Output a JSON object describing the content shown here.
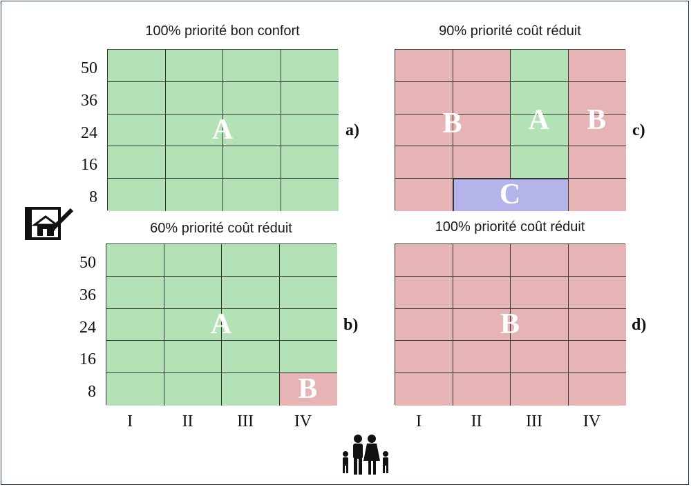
{
  "colors": {
    "A": "#b4e2b7",
    "B": "#e6b4b4",
    "C": "#b4b4ea"
  },
  "y_ticks": [
    "50",
    "36",
    "24",
    "16",
    "8"
  ],
  "x_ticks": [
    "I",
    "II",
    "III",
    "IV"
  ],
  "icons": {
    "left": "house-plan-icon",
    "bottom": "family-icon"
  },
  "panels": [
    {
      "id": "a",
      "title": "100% priorité bon confort",
      "letter": "a)",
      "cells": [
        [
          "A",
          "A",
          "A",
          "A"
        ],
        [
          "A",
          "A",
          "A",
          "A"
        ],
        [
          "A",
          "A",
          "A",
          "A"
        ],
        [
          "A",
          "A",
          "A",
          "A"
        ],
        [
          "A",
          "A",
          "A",
          "A"
        ]
      ],
      "labels": [
        {
          "text": "A",
          "col": 2.0,
          "row": 2.5
        }
      ]
    },
    {
      "id": "c",
      "title": "90% priorité coût réduit",
      "letter": "c)",
      "cells": [
        [
          "B",
          "B",
          "A",
          "B"
        ],
        [
          "B",
          "B",
          "A",
          "B"
        ],
        [
          "B",
          "B",
          "A",
          "B"
        ],
        [
          "B",
          "B",
          "A",
          "B"
        ],
        [
          "B",
          "C",
          "C",
          "B"
        ]
      ],
      "labels": [
        {
          "text": "B",
          "col": 1.0,
          "row": 2.3
        },
        {
          "text": "A",
          "col": 2.5,
          "row": 2.2
        },
        {
          "text": "B",
          "col": 3.5,
          "row": 2.2
        },
        {
          "text": "C",
          "col": 2.0,
          "row": 4.5
        }
      ]
    },
    {
      "id": "b",
      "title": "60% priorité coût réduit",
      "letter": "b)",
      "cells": [
        [
          "A",
          "A",
          "A",
          "A"
        ],
        [
          "A",
          "A",
          "A",
          "A"
        ],
        [
          "A",
          "A",
          "A",
          "A"
        ],
        [
          "A",
          "A",
          "A",
          "A"
        ],
        [
          "A",
          "A",
          "A",
          "B"
        ]
      ],
      "labels": [
        {
          "text": "A",
          "col": 2.0,
          "row": 2.5
        },
        {
          "text": "B",
          "col": 3.5,
          "row": 4.5
        }
      ]
    },
    {
      "id": "d",
      "title": "100% priorité coût réduit",
      "letter": "d)",
      "cells": [
        [
          "B",
          "B",
          "B",
          "B"
        ],
        [
          "B",
          "B",
          "B",
          "B"
        ],
        [
          "B",
          "B",
          "B",
          "B"
        ],
        [
          "B",
          "B",
          "B",
          "B"
        ],
        [
          "B",
          "B",
          "B",
          "B"
        ]
      ],
      "labels": [
        {
          "text": "B",
          "col": 2.0,
          "row": 2.5
        }
      ]
    }
  ]
}
